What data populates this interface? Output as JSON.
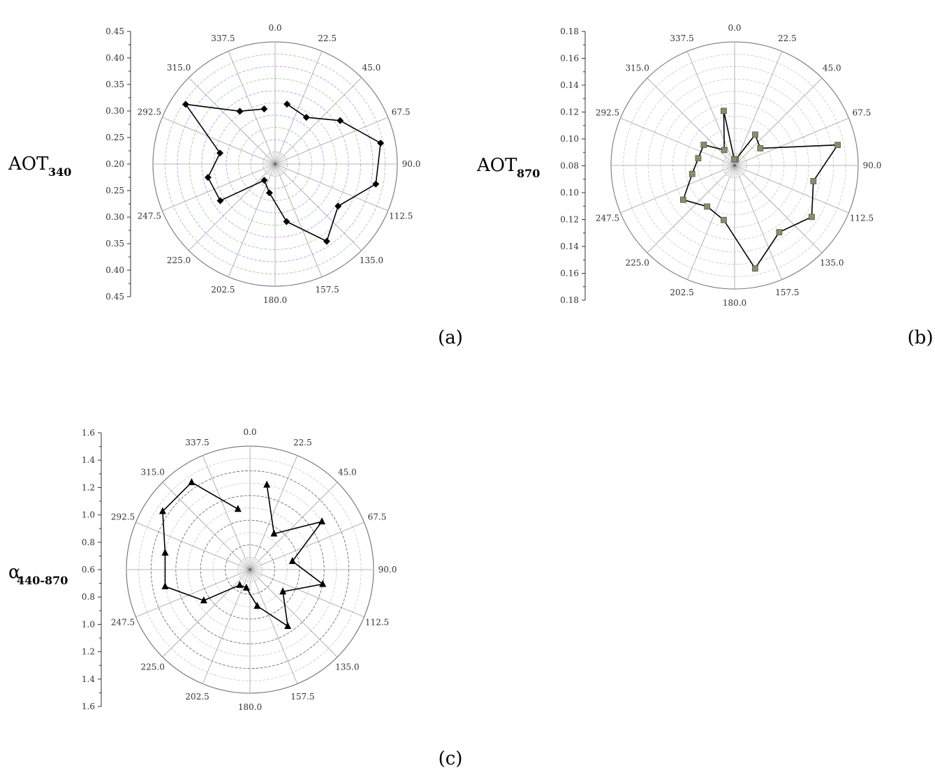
{
  "chart_data": [
    {
      "type": "polar-line",
      "panel_label": "(a)",
      "ylabel_main": "AOT",
      "ylabel_sub": "340",
      "radial_range": [
        0.2,
        0.45
      ],
      "radial_ticks": [
        "0.45",
        "0.40",
        "0.35",
        "0.30",
        "0.25",
        "0.20",
        "0.25",
        "0.30",
        "0.35",
        "0.40",
        "0.45"
      ],
      "angles": [
        "0.0",
        "22.5",
        "45.0",
        "67.5",
        "90.0",
        "112.5",
        "135.0",
        "157.5",
        "180.0",
        "202.5",
        "225.0",
        "247.5",
        "292.5",
        "315.0",
        "337.5"
      ],
      "marker": "diamond",
      "points": [
        {
          "angle": 11.25,
          "value": 0.325
        },
        {
          "angle": 33.75,
          "value": 0.315
        },
        {
          "angle": 56.25,
          "value": 0.36
        },
        {
          "angle": 78.75,
          "value": 0.42
        },
        {
          "angle": 101.25,
          "value": 0.41
        },
        {
          "angle": 123.75,
          "value": 0.355
        },
        {
          "angle": 146.25,
          "value": 0.39
        },
        {
          "angle": 168.75,
          "value": 0.32
        },
        {
          "angle": 191.25,
          "value": 0.26
        },
        {
          "angle": 213.75,
          "value": 0.24
        },
        {
          "angle": 236.25,
          "value": 0.335
        },
        {
          "angle": 258.75,
          "value": 0.34
        },
        {
          "angle": 281.25,
          "value": 0.315
        },
        {
          "angle": 303.75,
          "value": 0.42
        },
        {
          "angle": 326.25,
          "value": 0.33
        },
        {
          "angle": 348.75,
          "value": 0.315
        }
      ],
      "grid_colors": [
        "#a0a0f0",
        "#90d090"
      ]
    },
    {
      "type": "polar-line",
      "panel_label": "(b)",
      "ylabel_main": "AOT",
      "ylabel_sub": "870",
      "radial_range": [
        0.08,
        0.18
      ],
      "radial_ticks": [
        "0.18",
        "0.16",
        "0.14",
        "0.12",
        "0.10",
        "0.08",
        "0.10",
        "0.12",
        "0.14",
        "0.16",
        "0.18"
      ],
      "angles": [
        "0.0",
        "22.5",
        "45.0",
        "67.5",
        "90.0",
        "112.5",
        "135.0",
        "157.5",
        "180.0",
        "202.5",
        "225.0",
        "247.5",
        "292.5",
        "315.0",
        "337.5"
      ],
      "marker": "square",
      "points": [
        {
          "angle": 11.25,
          "value": 0.085
        },
        {
          "angle": 33.75,
          "value": 0.11
        },
        {
          "angle": 56.25,
          "value": 0.105
        },
        {
          "angle": 78.75,
          "value": 0.165
        },
        {
          "angle": 101.25,
          "value": 0.145
        },
        {
          "angle": 123.75,
          "value": 0.155
        },
        {
          "angle": 146.25,
          "value": 0.145
        },
        {
          "angle": 168.75,
          "value": 0.165
        },
        {
          "angle": 191.25,
          "value": 0.125
        },
        {
          "angle": 213.75,
          "value": 0.12
        },
        {
          "angle": 236.25,
          "value": 0.13
        },
        {
          "angle": 258.75,
          "value": 0.115
        },
        {
          "angle": 281.25,
          "value": 0.11
        },
        {
          "angle": 303.75,
          "value": 0.11
        },
        {
          "angle": 326.25,
          "value": 0.095
        },
        {
          "angle": 348.75,
          "value": 0.125
        },
        {
          "angle": 357.0,
          "value": 0.085
        }
      ],
      "grid_colors": [
        "#c8c8c8",
        "#c8c8c8"
      ]
    },
    {
      "type": "polar-line",
      "panel_label": "(c)",
      "ylabel_main": "α",
      "ylabel_sub": "440-870",
      "radial_range": [
        0.6,
        1.6
      ],
      "radial_ticks": [
        "1.6",
        "1.4",
        "1.2",
        "1.0",
        "0.8",
        "0.6",
        "0.8",
        "1.0",
        "1.2",
        "1.4",
        "1.6"
      ],
      "angles": [
        "0.0",
        "22.5",
        "45.0",
        "67.5",
        "90.0",
        "112.5",
        "135.0",
        "157.5",
        "180.0",
        "202.5",
        "225.0",
        "247.5",
        "292.5",
        "315.0",
        "337.5"
      ],
      "marker": "triangle",
      "points": [
        {
          "angle": 11.25,
          "value": 1.3
        },
        {
          "angle": 33.75,
          "value": 0.95
        },
        {
          "angle": 56.25,
          "value": 1.3
        },
        {
          "angle": 78.75,
          "value": 0.95
        },
        {
          "angle": 101.25,
          "value": 1.2
        },
        {
          "angle": 123.75,
          "value": 0.92
        },
        {
          "angle": 146.25,
          "value": 1.15
        },
        {
          "angle": 168.75,
          "value": 0.9
        },
        {
          "angle": 191.25,
          "value": 0.75
        },
        {
          "angle": 213.75,
          "value": 0.75
        },
        {
          "angle": 236.25,
          "value": 1.05
        },
        {
          "angle": 258.75,
          "value": 1.3
        },
        {
          "angle": 281.25,
          "value": 1.3
        },
        {
          "angle": 303.75,
          "value": 1.45
        },
        {
          "angle": 326.25,
          "value": 1.45
        },
        {
          "angle": 348.75,
          "value": 1.1
        }
      ],
      "grid_colors": [
        "#606060",
        "#c8c8c8"
      ]
    }
  ]
}
